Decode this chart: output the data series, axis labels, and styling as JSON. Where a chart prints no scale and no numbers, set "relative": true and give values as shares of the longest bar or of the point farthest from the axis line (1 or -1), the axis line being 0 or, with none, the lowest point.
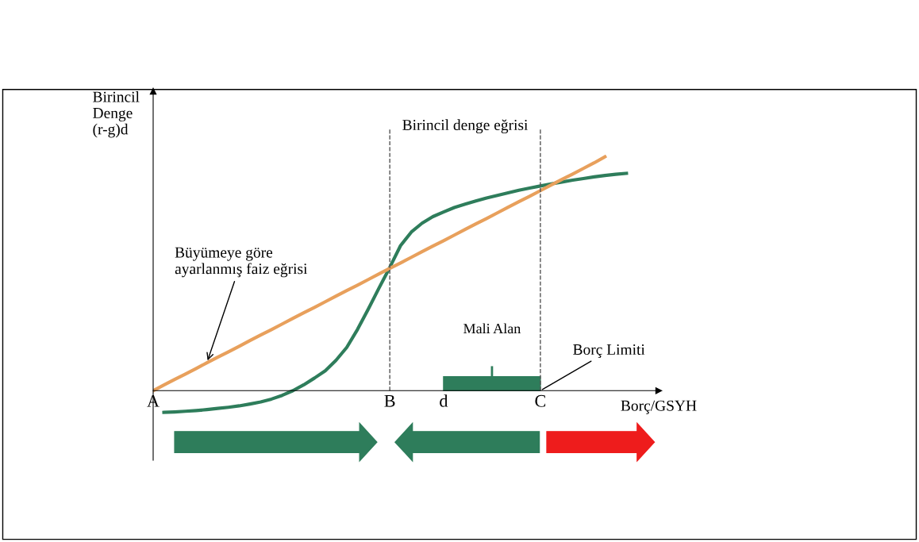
{
  "chart_data": {
    "type": "line",
    "relative": true,
    "ylabel": "Birincil\nDenge\n(r-g)d",
    "xlabel": "Borç/GSYH",
    "categories": [
      "A",
      null,
      null,
      null,
      null,
      null,
      null,
      null,
      null,
      null,
      null,
      null,
      null,
      null,
      null,
      null,
      null,
      null,
      null,
      null,
      null,
      null,
      "B",
      null,
      null,
      null,
      null,
      "d",
      null,
      null,
      null,
      null,
      null,
      null,
      null,
      null,
      "C",
      null,
      null,
      null,
      null,
      null,
      null,
      null,
      null,
      null,
      null
    ],
    "tick_labels": "x",
    "grid": false,
    "marker": "none",
    "line_style": "solid",
    "series": [
      {
        "color": "#2e7d5b",
        "values": [
          null,
          -0.093,
          -0.091,
          -0.088,
          -0.085,
          -0.081,
          -0.076,
          -0.071,
          -0.065,
          -0.057,
          -0.048,
          -0.036,
          -0.02,
          0.0,
          0.025,
          0.054,
          0.085,
          0.13,
          0.185,
          0.262,
          0.349,
          0.439,
          0.527,
          0.62,
          0.678,
          0.716,
          0.744,
          0.764,
          0.783,
          0.797,
          0.811,
          0.824,
          0.835,
          0.846,
          0.857,
          0.866,
          0.875,
          0.884,
          0.892,
          0.9,
          0.907,
          0.914,
          0.92,
          0.925,
          0.929,
          null,
          null
        ]
      },
      {
        "color": "#e8a05c",
        "values": [
          0,
          0.024,
          0.048,
          0.071,
          0.095,
          0.119,
          0.143,
          0.166,
          0.19,
          0.214,
          0.238,
          0.261,
          0.285,
          0.309,
          0.333,
          0.356,
          0.38,
          0.404,
          0.428,
          0.451,
          0.475,
          0.499,
          0.523,
          0.546,
          0.57,
          0.594,
          0.618,
          0.641,
          0.665,
          0.689,
          0.713,
          0.736,
          0.76,
          0.784,
          0.808,
          0.831,
          0.855,
          0.879,
          0.903,
          0.926,
          0.95,
          0.974,
          1.0,
          null,
          null,
          null,
          null
        ]
      }
    ],
    "ref_lines": [
      {
        "axis": "x",
        "value": "B",
        "color": "#555555",
        "line_style": "dashed"
      },
      {
        "axis": "x",
        "value": "C",
        "color": "#555555",
        "line_style": "dashed"
      }
    ],
    "annotations": [
      "Büyümeye göre\nayarlanmış faiz eğrisi",
      "Birincil denge eğrisi",
      "Mali Alan",
      {
        "text": "Borç Limiti",
        "x": "C",
        "y": 0
      }
    ]
  }
}
